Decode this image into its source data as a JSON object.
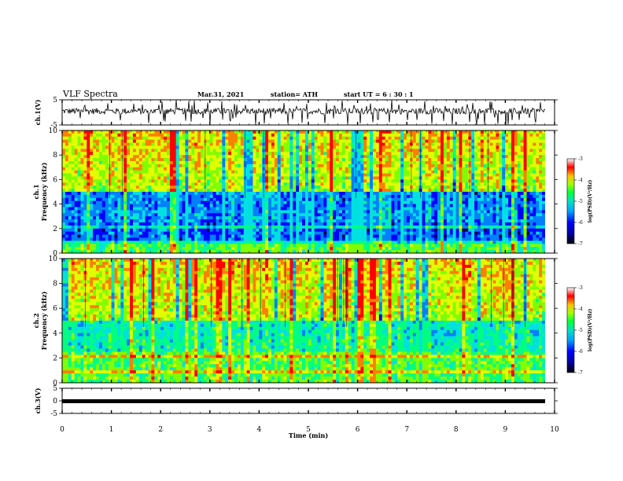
{
  "header": {
    "title": "VLF Spectra",
    "date": "Mar.31, 2021",
    "station": "station= ATH",
    "start": "start  UT =  6 : 30 : 1"
  },
  "chart_data": [
    {
      "type": "line",
      "panel": "ch1-waveform",
      "ylabel": "ch.1(V)",
      "ylim": [
        -5,
        5
      ],
      "yticks": [
        "5",
        "-5"
      ],
      "xlim": [
        0,
        10
      ],
      "description_values": {
        "baseline_v": 0.5,
        "noise_v": 1.2
      }
    },
    {
      "type": "heatmap",
      "panel": "ch1-spectrogram",
      "ylabel": "ch.1\nFrequency (kHz)",
      "ylim": [
        0,
        10
      ],
      "yticks": [
        "0",
        "2",
        "4",
        "6",
        "8",
        "10"
      ],
      "xlim": [
        0,
        10
      ],
      "colorbar": {
        "label": "log(PSD)(V²/Hz)",
        "ticks": [
          "-3",
          "-4",
          "-5",
          "-6",
          "-7"
        ],
        "range": [
          -7,
          -3
        ]
      }
    },
    {
      "type": "heatmap",
      "panel": "ch2-spectrogram",
      "ylabel": "ch.2\nFrequency (kHz)",
      "ylim": [
        0,
        10
      ],
      "yticks": [
        "0",
        "2",
        "4",
        "6",
        "8",
        "10"
      ],
      "xlim": [
        0,
        10
      ],
      "colorbar": {
        "label": "log(PSD)(V²/Hz)",
        "ticks": [
          "-3",
          "-4",
          "-5",
          "-6",
          "-7"
        ],
        "range": [
          -7,
          -3
        ]
      }
    },
    {
      "type": "line",
      "panel": "ch3-waveform",
      "ylabel": "ch.3(V)",
      "ylim": [
        -5,
        5
      ],
      "yticks": [
        "5",
        "0",
        "-5"
      ],
      "xlim": [
        0,
        10
      ],
      "xticks": [
        "0",
        "1",
        "2",
        "3",
        "4",
        "5",
        "6",
        "7",
        "8",
        "9",
        "10"
      ],
      "xlabel": "Time  (min)",
      "description_values": {
        "level_v": -1
      }
    }
  ],
  "colors": {
    "colormap": [
      "#00004a",
      "#0000ff",
      "#0080ff",
      "#00e0e0",
      "#00ff80",
      "#80ff00",
      "#e0ff00",
      "#ff8000",
      "#ff0000",
      "#ffffff"
    ],
    "trace": "#000000"
  }
}
